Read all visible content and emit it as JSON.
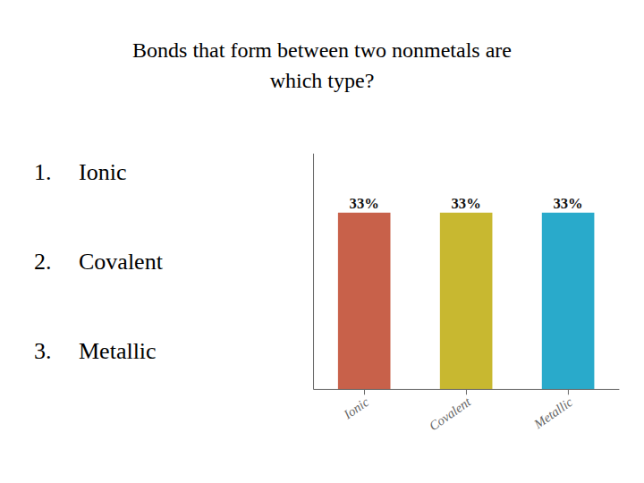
{
  "chart_data": {
    "type": "bar",
    "title": [
      "Bonds that form between two nonmetals are",
      "which type?"
    ],
    "categories": [
      "Ionic",
      "Covalent",
      "Metallic"
    ],
    "values": [
      33,
      33,
      33
    ],
    "value_labels": [
      "33%",
      "33%",
      "33%"
    ],
    "colors": [
      "#c8614a",
      "#c8b830",
      "#29aacb"
    ],
    "ylim": [
      0,
      44
    ],
    "data_labels": true,
    "tick_labels": "x",
    "grid": false,
    "annotations": [
      {
        "number": "1.",
        "text": "Ionic"
      },
      {
        "number": "2.",
        "text": "Covalent"
      },
      {
        "number": "3.",
        "text": "Metallic"
      }
    ]
  }
}
